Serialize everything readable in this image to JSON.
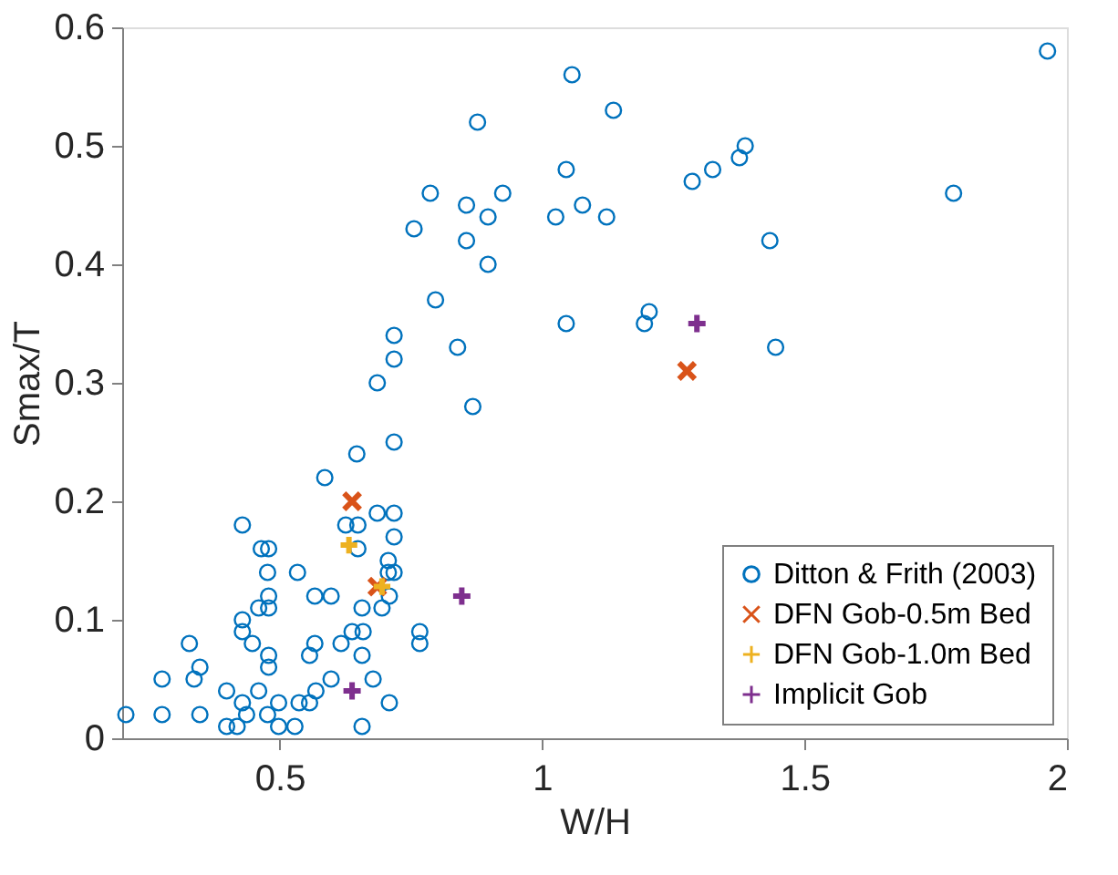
{
  "chart_data": {
    "type": "scatter",
    "xlabel": "W/H",
    "ylabel": "Smax/T",
    "xlim": [
      0.2,
      2
    ],
    "ylim": [
      0,
      0.6
    ],
    "xticks": [
      0.5,
      1,
      1.5,
      2
    ],
    "yticks": [
      0,
      0.1,
      0.2,
      0.3,
      0.4,
      0.5,
      0.6
    ],
    "grid": false,
    "legend": "bottom right",
    "series": [
      {
        "name": "Ditton & Frith (2003)",
        "color": "#0072bd",
        "marker": "circle",
        "x": [
          1.057,
          0.877,
          0.787,
          0.856,
          0.925,
          0.897,
          0.756,
          0.856,
          0.897,
          0.797,
          1.026,
          1.046,
          1.077,
          1.123,
          1.136,
          1.046,
          0.718,
          0.718,
          0.839,
          0.686,
          0.868,
          1.286,
          1.325,
          1.376,
          1.387,
          1.784,
          1.963,
          1.434,
          1.204,
          1.195,
          1.445,
          0.718,
          0.647,
          0.586,
          0.686,
          0.718,
          0.626,
          0.649,
          0.429,
          0.718,
          0.649,
          0.465,
          0.479,
          0.477,
          0.534,
          0.707,
          0.718,
          0.707,
          0.479,
          0.567,
          0.598,
          0.709,
          0.46,
          0.479,
          0.657,
          0.695,
          0.429,
          0.429,
          0.448,
          0.328,
          0.567,
          0.617,
          0.638,
          0.659,
          0.767,
          0.767,
          0.557,
          0.479,
          0.657,
          0.479,
          0.348,
          0.337,
          0.276,
          0.598,
          0.678,
          0.399,
          0.46,
          0.569,
          0.429,
          0.498,
          0.537,
          0.557,
          0.709,
          0.207,
          0.276,
          0.348,
          0.437,
          0.477,
          0.399,
          0.419,
          0.498,
          0.529,
          0.657
        ],
        "values": [
          0.56,
          0.52,
          0.46,
          0.45,
          0.46,
          0.44,
          0.43,
          0.42,
          0.4,
          0.37,
          0.44,
          0.48,
          0.45,
          0.44,
          0.53,
          0.35,
          0.34,
          0.32,
          0.33,
          0.3,
          0.28,
          0.47,
          0.48,
          0.49,
          0.5,
          0.46,
          0.58,
          0.42,
          0.36,
          0.35,
          0.33,
          0.25,
          0.24,
          0.22,
          0.19,
          0.19,
          0.18,
          0.18,
          0.18,
          0.17,
          0.16,
          0.16,
          0.16,
          0.14,
          0.14,
          0.15,
          0.14,
          0.14,
          0.12,
          0.12,
          0.12,
          0.12,
          0.11,
          0.11,
          0.11,
          0.11,
          0.1,
          0.09,
          0.08,
          0.08,
          0.08,
          0.08,
          0.09,
          0.09,
          0.09,
          0.08,
          0.07,
          0.07,
          0.07,
          0.06,
          0.06,
          0.05,
          0.05,
          0.05,
          0.05,
          0.04,
          0.04,
          0.04,
          0.03,
          0.03,
          0.03,
          0.03,
          0.03,
          0.02,
          0.02,
          0.02,
          0.02,
          0.02,
          0.01,
          0.01,
          0.01,
          0.01,
          0.01
        ]
      },
      {
        "name": "DFN Gob-0.5m Bed",
        "color": "#d95319",
        "marker": "cross",
        "x": [
          0.638,
          0.686,
          1.276
        ],
        "values": [
          0.2,
          0.128,
          0.31
        ]
      },
      {
        "name": "DFN Gob-1.0m Bed",
        "color": "#edb120",
        "marker": "plus",
        "x": [
          0.632,
          0.695
        ],
        "values": [
          0.163,
          0.128
        ]
      },
      {
        "name": "Implicit Gob",
        "color": "#7e2f8e",
        "marker": "plus",
        "x": [
          0.638,
          0.847,
          1.295
        ],
        "values": [
          0.04,
          0.12,
          0.35
        ]
      }
    ]
  }
}
